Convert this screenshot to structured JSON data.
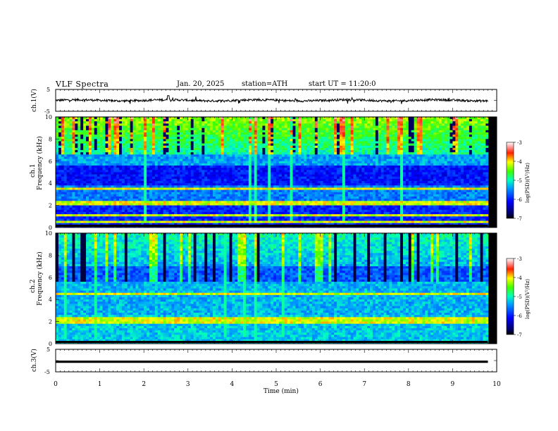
{
  "header": {
    "title": "VLF  Spectra",
    "date": "Jan. 20, 2025",
    "station": "station=ATH",
    "start": "start  UT  =   11:20:0"
  },
  "chart_data": [
    {
      "type": "line",
      "name": "ch.1 waveform",
      "ylabel": "ch.1(V)",
      "ylim": [
        -5,
        5
      ],
      "yticks": [
        "5",
        "-5"
      ],
      "xlim": [
        0,
        10
      ],
      "trace_end_min": 9.8,
      "baseline_v": 0,
      "approx_envelope_v": [
        -1,
        1
      ]
    },
    {
      "type": "heatmap",
      "name": "ch.1 spectrogram",
      "ylabel_top": "ch.1",
      "ylabel": "Frequency  (kHz)",
      "ylim": [
        0,
        10
      ],
      "yticks": [
        "0",
        "2",
        "4",
        "6",
        "8",
        "10"
      ],
      "xlim": [
        0,
        10
      ],
      "colorbar": {
        "label": "log(PSD)(V²/Hz)",
        "range": [
          -7,
          -3
        ],
        "ticks": [
          "-3",
          "-4",
          "-5",
          "-6",
          "-7"
        ]
      },
      "features": {
        "strong_bands_khz": [
          0.5,
          1.1,
          2.2,
          3.5
        ],
        "high_freq_activity_khz": [
          6.5,
          10
        ],
        "quiet_band_khz": [
          3.8,
          5.5
        ]
      }
    },
    {
      "type": "heatmap",
      "name": "ch.2 spectrogram",
      "ylabel_top": "ch.2",
      "ylabel": "Frequency  (kHz)",
      "ylim": [
        0,
        10
      ],
      "yticks": [
        "0",
        "2",
        "4",
        "6",
        "8",
        "10"
      ],
      "xlim": [
        0,
        10
      ],
      "colorbar": {
        "label": "log(PSD)(V²/Hz)",
        "range": [
          -7,
          -3
        ],
        "ticks": [
          "-3",
          "-4",
          "-5",
          "-6",
          "-7"
        ]
      },
      "features": {
        "strong_bands_khz": [
          2.0,
          2.2,
          4.5
        ],
        "high_freq_activity_khz": [
          5.5,
          10
        ]
      }
    },
    {
      "type": "line",
      "name": "ch.3 waveform",
      "ylabel": "ch.3(V)",
      "ylim": [
        -5,
        5
      ],
      "yticks": [
        "5",
        "-5"
      ],
      "xlim": [
        0,
        10
      ],
      "trace_end_min": 9.8,
      "baseline_v": -0.5
    }
  ],
  "xaxis": {
    "label": "Time  (min)",
    "ticks": [
      "0",
      "1",
      "2",
      "3",
      "4",
      "5",
      "6",
      "7",
      "8",
      "9",
      "10"
    ]
  }
}
